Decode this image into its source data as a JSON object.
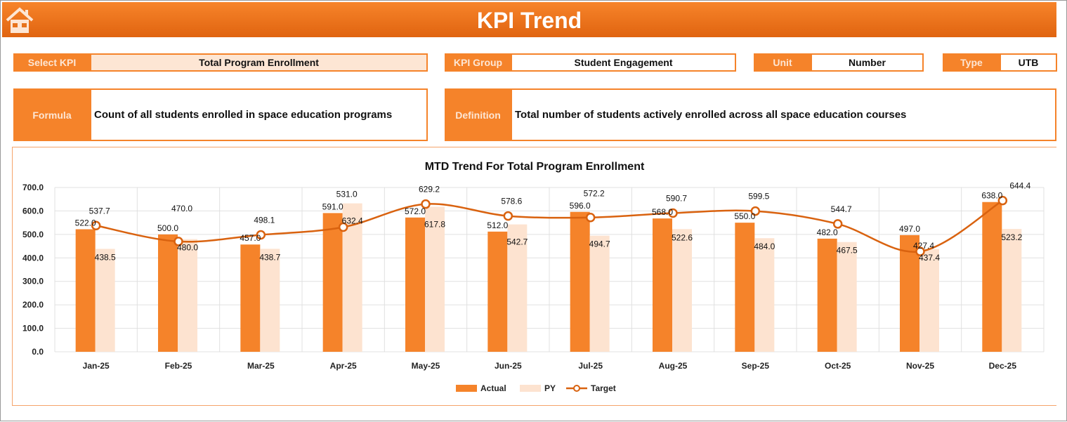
{
  "header": {
    "title": "KPI Trend",
    "home_icon": "home-icon"
  },
  "fields": {
    "select_kpi_label": "Select KPI",
    "select_kpi_value": "Total Program Enrollment",
    "kpi_group_label": "KPI Group",
    "kpi_group_value": "Student Engagement",
    "unit_label": "Unit",
    "unit_value": "Number",
    "type_label": "Type",
    "type_value": "UTB",
    "formula_label": "Formula",
    "formula_value": "Count of all students enrolled in space education programs",
    "definition_label": "Definition",
    "definition_value": "Total number of students actively enrolled across all space education courses"
  },
  "colors": {
    "accent": "#f5832a",
    "actual": "#f5832a",
    "py": "#fde3d0",
    "target": "#d9620f"
  },
  "chart_data": {
    "type": "bar",
    "title": "MTD Trend For Total Program Enrollment",
    "categories": [
      "Jan-25",
      "Feb-25",
      "Mar-25",
      "Apr-25",
      "May-25",
      "Jun-25",
      "Jul-25",
      "Aug-25",
      "Sep-25",
      "Oct-25",
      "Nov-25",
      "Dec-25"
    ],
    "ylim": [
      0,
      700
    ],
    "yticks": [
      "0.0",
      "100.0",
      "200.0",
      "300.0",
      "400.0",
      "500.0",
      "600.0",
      "700.0"
    ],
    "grid": true,
    "legend": "bottom",
    "series": [
      {
        "name": "Actual",
        "type": "bar",
        "values": [
          522.0,
          500.0,
          457.0,
          591.0,
          572.0,
          512.0,
          596.0,
          568.0,
          550.0,
          482.0,
          497.0,
          638.0
        ]
      },
      {
        "name": "PY",
        "type": "bar",
        "values": [
          438.5,
          480.0,
          438.7,
          632.4,
          617.8,
          542.7,
          494.7,
          522.6,
          484.0,
          467.5,
          437.4,
          523.2
        ]
      },
      {
        "name": "Target",
        "type": "line",
        "values": [
          537.7,
          470.0,
          498.1,
          531.0,
          629.2,
          578.6,
          572.2,
          590.7,
          599.5,
          544.7,
          427.4,
          644.4
        ]
      }
    ]
  }
}
